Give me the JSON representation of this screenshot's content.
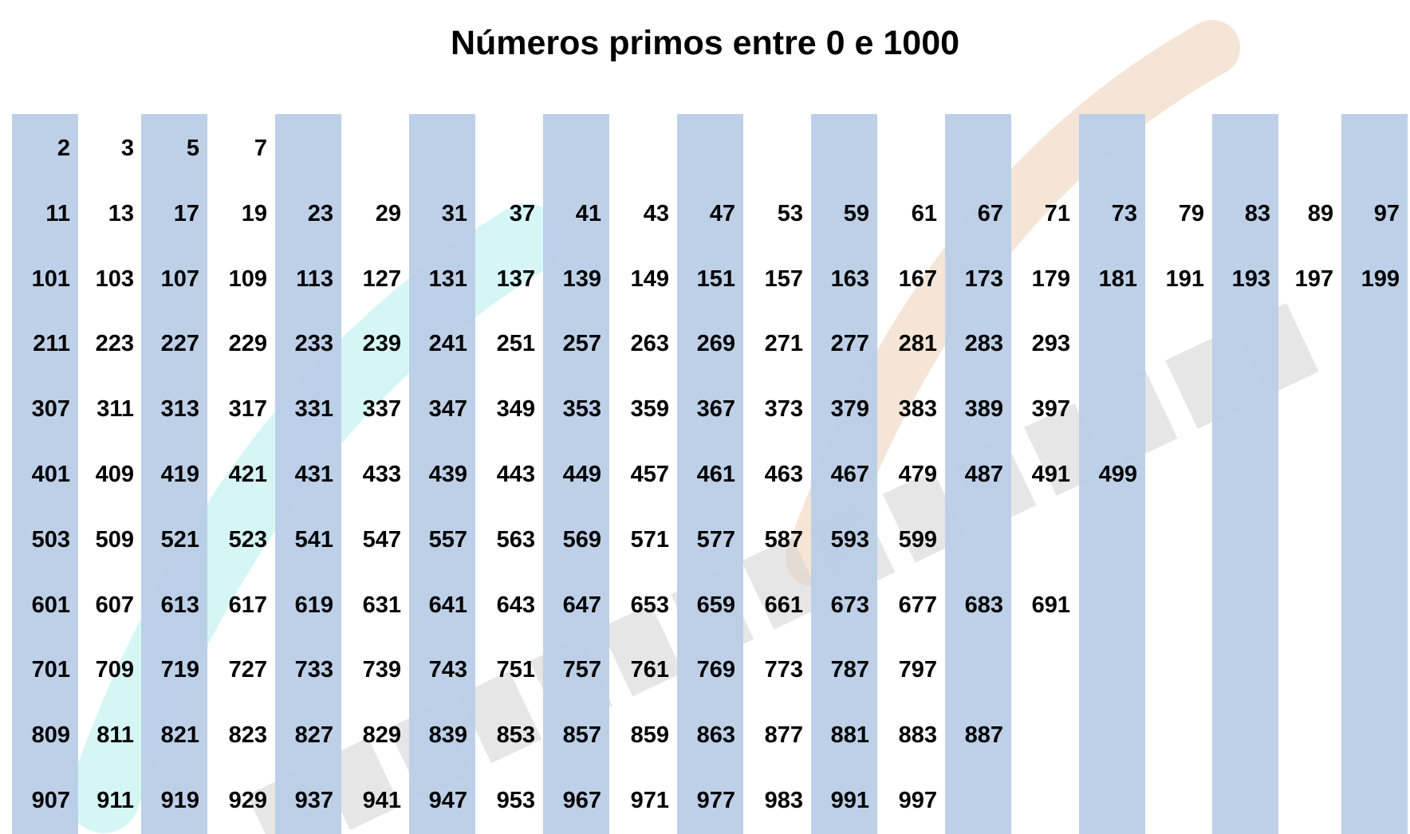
{
  "title": "Números primos entre 0 e 1000",
  "colors": {
    "stripe": "#b9cde7",
    "text": "#000000",
    "background": "#ffffff"
  },
  "watermark_visible": true,
  "rows": [
    [
      "2",
      "3",
      "5",
      "7"
    ],
    [
      "11",
      "13",
      "17",
      "19",
      "23",
      "29",
      "31",
      "37",
      "41",
      "43",
      "47",
      "53",
      "59",
      "61",
      "67",
      "71",
      "73",
      "79",
      "83",
      "89",
      "97"
    ],
    [
      "101",
      "103",
      "107",
      "109",
      "113",
      "127",
      "131",
      "137",
      "139",
      "149",
      "151",
      "157",
      "163",
      "167",
      "173",
      "179",
      "181",
      "191",
      "193",
      "197",
      "199"
    ],
    [
      "211",
      "223",
      "227",
      "229",
      "233",
      "239",
      "241",
      "251",
      "257",
      "263",
      "269",
      "271",
      "277",
      "281",
      "283",
      "293"
    ],
    [
      "307",
      "311",
      "313",
      "317",
      "331",
      "337",
      "347",
      "349",
      "353",
      "359",
      "367",
      "373",
      "379",
      "383",
      "389",
      "397"
    ],
    [
      "401",
      "409",
      "419",
      "421",
      "431",
      "433",
      "439",
      "443",
      "449",
      "457",
      "461",
      "463",
      "467",
      "479",
      "487",
      "491",
      "499"
    ],
    [
      "503",
      "509",
      "521",
      "523",
      "541",
      "547",
      "557",
      "563",
      "569",
      "571",
      "577",
      "587",
      "593",
      "599"
    ],
    [
      "601",
      "607",
      "613",
      "617",
      "619",
      "631",
      "641",
      "643",
      "647",
      "653",
      "659",
      "661",
      "673",
      "677",
      "683",
      "691"
    ],
    [
      "701",
      "709",
      "719",
      "727",
      "733",
      "739",
      "743",
      "751",
      "757",
      "761",
      "769",
      "773",
      "787",
      "797"
    ],
    [
      "809",
      "811",
      "821",
      "823",
      "827",
      "829",
      "839",
      "853",
      "857",
      "859",
      "863",
      "877",
      "881",
      "883",
      "887"
    ],
    [
      "907",
      "911",
      "919",
      "929",
      "937",
      "941",
      "947",
      "953",
      "967",
      "971",
      "977",
      "983",
      "991",
      "997"
    ]
  ]
}
